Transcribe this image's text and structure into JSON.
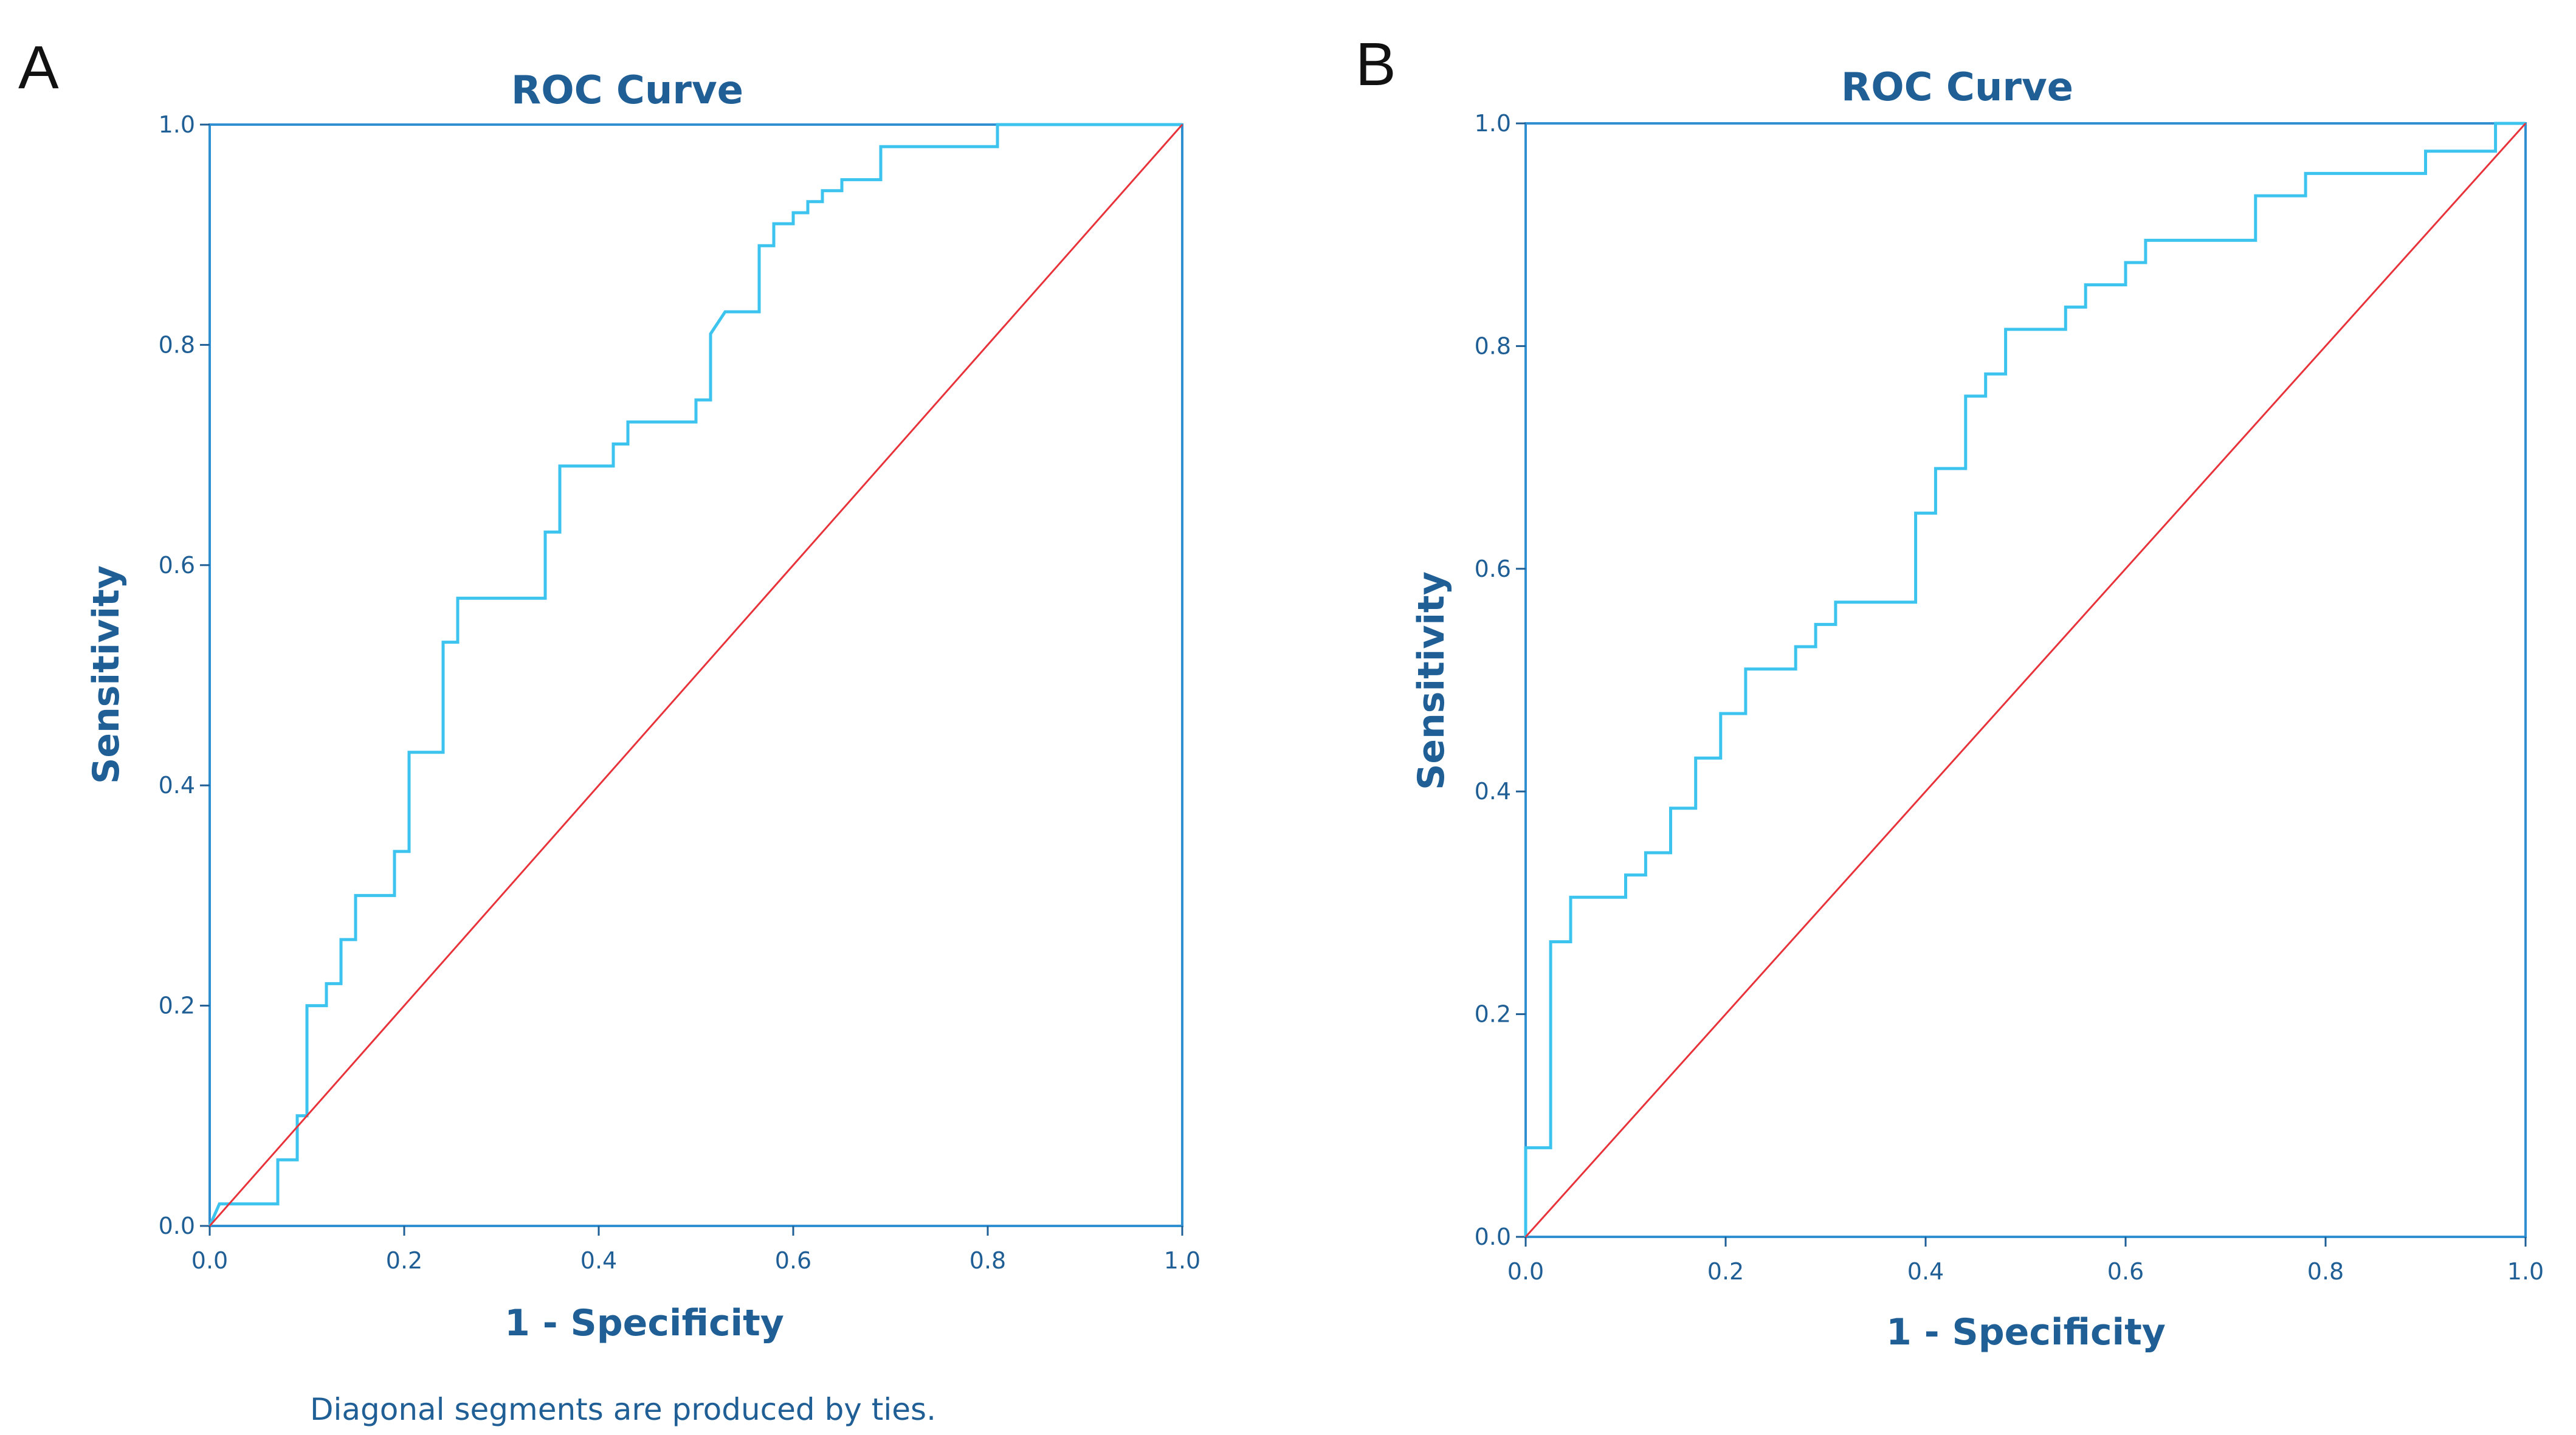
{
  "colors": {
    "text": "#1f5f96",
    "frame": "#2f8fd0",
    "roc_line": "#3cc4ef",
    "diagonal": "#e8333b",
    "tick": "#1f5f96"
  },
  "chart_data": [
    {
      "type": "line",
      "panel": "A",
      "title": "ROC Curve",
      "xlabel": "1 - Specificity",
      "ylabel": "Sensitivity",
      "xlim": [
        0,
        1
      ],
      "ylim": [
        0,
        1
      ],
      "xticks": [
        "0.0",
        "0.2",
        "0.4",
        "0.6",
        "0.8",
        "1.0"
      ],
      "yticks": [
        "0.0",
        "0.2",
        "0.4",
        "0.6",
        "0.8",
        "1.0"
      ],
      "grid": false,
      "footnote": "Diagonal segments are produced by ties.",
      "series": [
        {
          "name": "ROC",
          "points": [
            [
              0,
              0
            ],
            [
              0.01,
              0.02
            ],
            [
              0.07,
              0.02
            ],
            [
              0.07,
              0.06
            ],
            [
              0.09,
              0.06
            ],
            [
              0.09,
              0.1
            ],
            [
              0.1,
              0.1
            ],
            [
              0.1,
              0.2
            ],
            [
              0.12,
              0.2
            ],
            [
              0.12,
              0.22
            ],
            [
              0.135,
              0.22
            ],
            [
              0.135,
              0.26
            ],
            [
              0.15,
              0.26
            ],
            [
              0.15,
              0.3
            ],
            [
              0.19,
              0.3
            ],
            [
              0.19,
              0.34
            ],
            [
              0.205,
              0.34
            ],
            [
              0.205,
              0.43
            ],
            [
              0.24,
              0.43
            ],
            [
              0.24,
              0.53
            ],
            [
              0.255,
              0.53
            ],
            [
              0.255,
              0.57
            ],
            [
              0.345,
              0.57
            ],
            [
              0.345,
              0.63
            ],
            [
              0.36,
              0.63
            ],
            [
              0.36,
              0.69
            ],
            [
              0.415,
              0.69
            ],
            [
              0.415,
              0.71
            ],
            [
              0.43,
              0.71
            ],
            [
              0.43,
              0.73
            ],
            [
              0.5,
              0.73
            ],
            [
              0.5,
              0.75
            ],
            [
              0.515,
              0.75
            ],
            [
              0.515,
              0.81
            ],
            [
              0.53,
              0.83
            ],
            [
              0.565,
              0.83
            ],
            [
              0.565,
              0.89
            ],
            [
              0.58,
              0.89
            ],
            [
              0.58,
              0.91
            ],
            [
              0.6,
              0.91
            ],
            [
              0.6,
              0.92
            ],
            [
              0.615,
              0.92
            ],
            [
              0.615,
              0.93
            ],
            [
              0.63,
              0.93
            ],
            [
              0.63,
              0.94
            ],
            [
              0.65,
              0.94
            ],
            [
              0.65,
              0.95
            ],
            [
              0.69,
              0.95
            ],
            [
              0.69,
              0.98
            ],
            [
              0.81,
              0.98
            ],
            [
              0.81,
              1.0
            ],
            [
              1.0,
              1.0
            ]
          ]
        },
        {
          "name": "Reference line",
          "points": [
            [
              0,
              0
            ],
            [
              1,
              1
            ]
          ]
        }
      ]
    },
    {
      "type": "line",
      "panel": "B",
      "title": "ROC Curve",
      "xlabel": "1 - Specificity",
      "ylabel": "Sensitivity",
      "xlim": [
        0,
        1
      ],
      "ylim": [
        0,
        1
      ],
      "xticks": [
        "0.0",
        "0.2",
        "0.4",
        "0.6",
        "0.8",
        "1.0"
      ],
      "yticks": [
        "0.0",
        "0.2",
        "0.4",
        "0.6",
        "0.8",
        "1.0"
      ],
      "grid": false,
      "series": [
        {
          "name": "ROC",
          "points": [
            [
              0,
              0
            ],
            [
              0,
              0.08
            ],
            [
              0.025,
              0.08
            ],
            [
              0.025,
              0.265
            ],
            [
              0.045,
              0.265
            ],
            [
              0.045,
              0.305
            ],
            [
              0.1,
              0.305
            ],
            [
              0.1,
              0.325
            ],
            [
              0.12,
              0.325
            ],
            [
              0.12,
              0.345
            ],
            [
              0.145,
              0.345
            ],
            [
              0.145,
              0.385
            ],
            [
              0.17,
              0.385
            ],
            [
              0.17,
              0.43
            ],
            [
              0.195,
              0.43
            ],
            [
              0.195,
              0.47
            ],
            [
              0.22,
              0.47
            ],
            [
              0.22,
              0.51
            ],
            [
              0.27,
              0.51
            ],
            [
              0.27,
              0.53
            ],
            [
              0.29,
              0.53
            ],
            [
              0.29,
              0.55
            ],
            [
              0.31,
              0.55
            ],
            [
              0.31,
              0.57
            ],
            [
              0.39,
              0.57
            ],
            [
              0.39,
              0.65
            ],
            [
              0.41,
              0.65
            ],
            [
              0.41,
              0.69
            ],
            [
              0.44,
              0.69
            ],
            [
              0.44,
              0.755
            ],
            [
              0.46,
              0.755
            ],
            [
              0.46,
              0.775
            ],
            [
              0.48,
              0.775
            ],
            [
              0.48,
              0.815
            ],
            [
              0.54,
              0.815
            ],
            [
              0.54,
              0.835
            ],
            [
              0.56,
              0.835
            ],
            [
              0.56,
              0.855
            ],
            [
              0.6,
              0.855
            ],
            [
              0.6,
              0.875
            ],
            [
              0.62,
              0.875
            ],
            [
              0.62,
              0.895
            ],
            [
              0.73,
              0.895
            ],
            [
              0.73,
              0.935
            ],
            [
              0.78,
              0.935
            ],
            [
              0.78,
              0.955
            ],
            [
              0.9,
              0.955
            ],
            [
              0.9,
              0.975
            ],
            [
              0.97,
              0.975
            ],
            [
              0.97,
              1.0
            ],
            [
              1.0,
              1.0
            ]
          ]
        },
        {
          "name": "Reference line",
          "points": [
            [
              0,
              0
            ],
            [
              1,
              1
            ]
          ]
        }
      ]
    }
  ]
}
